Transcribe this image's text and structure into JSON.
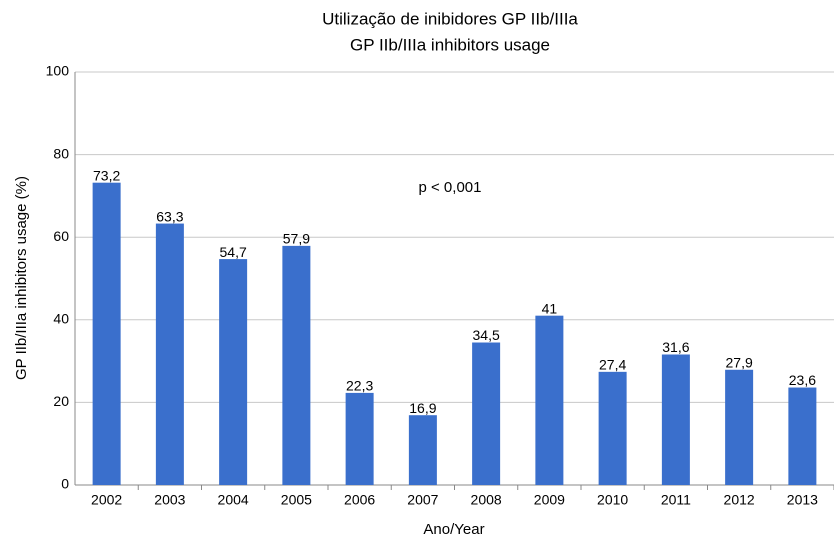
{
  "chart_data": {
    "type": "bar",
    "title": "Utilização de inibidores GP IIb/IIIa",
    "subtitle": "GP IIb/IIIa inhibitors usage",
    "x_label": "Ano/Year",
    "y_label": "GP IIb/IIIa inhibitors usage (%)",
    "annotation": "p < 0,001",
    "categories": [
      "2002",
      "2003",
      "2004",
      "2005",
      "2006",
      "2007",
      "2008",
      "2009",
      "2010",
      "2011",
      "2012",
      "2013"
    ],
    "values": [
      73.2,
      63.3,
      54.7,
      57.9,
      22.3,
      16.9,
      34.5,
      41,
      27.4,
      31.6,
      27.9,
      23.6
    ],
    "value_labels": [
      "73,2",
      "63,3",
      "54,7",
      "57,9",
      "22,3",
      "16,9",
      "34,5",
      "41",
      "27,4",
      "31,6",
      "27,9",
      "23,6"
    ],
    "color": "#3a6fcc",
    "ylim": [
      0,
      100
    ],
    "yticks": [
      0,
      20,
      40,
      60,
      80,
      100
    ],
    "grid": true
  }
}
